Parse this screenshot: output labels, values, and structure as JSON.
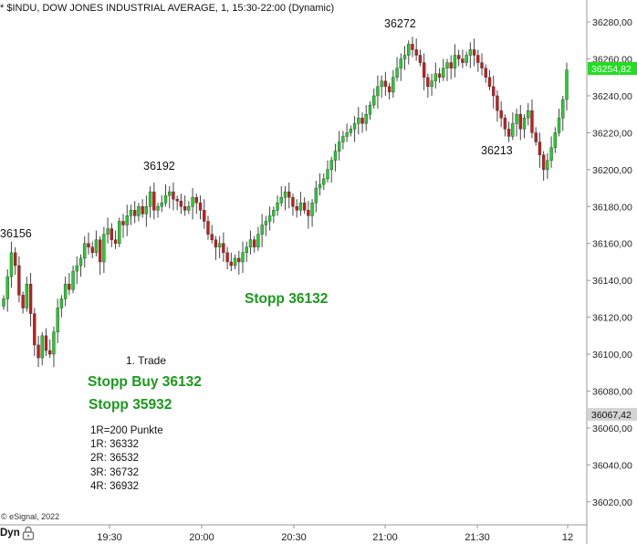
{
  "header": {
    "title": "* $INDU, DOW JONES INDUSTRIAL AVERAGE, 1, 15:30-22:00 (Dynamic)"
  },
  "annotations": {
    "high1": "36156",
    "high2": "36192",
    "high3": "36272",
    "low1": "36213",
    "stopp_mid": "Stopp 36132",
    "trade_label": "1. Trade",
    "stopp_buy": "Stopp Buy 36132",
    "stopp_low": "Stopp 35932",
    "r_list": [
      "1R=200 Punkte",
      "1R: 36332",
      "2R: 36532",
      "3R: 36732",
      "4R: 36932"
    ]
  },
  "footer": {
    "copyright": "© eSignal, 2022",
    "dyn_label": "Dyn"
  },
  "colors": {
    "up": "#1fd12a",
    "down": "#cc1a1a",
    "price_badge": "#22dd22",
    "level_badge": "#d4d4d4",
    "annotation_green": "#1a9a1a"
  },
  "chart_data": {
    "type": "candlestick",
    "symbol": "$INDU",
    "ylim": [
      36010,
      36285
    ],
    "y_ticks": [
      36020,
      36040,
      36060,
      36080,
      36100,
      36120,
      36140,
      36160,
      36180,
      36200,
      36220,
      36240,
      36260,
      36280
    ],
    "x_ticks": [
      "19:30",
      "20:00",
      "20:30",
      "21:00",
      "21:30",
      "12"
    ],
    "last_price": 36254.82,
    "marked_level": 36067.42,
    "closes": [
      36130,
      36142,
      36155,
      36148,
      36132,
      36125,
      36138,
      36122,
      36105,
      36098,
      36110,
      36102,
      36100,
      36112,
      36125,
      36130,
      36138,
      36135,
      36145,
      36148,
      36152,
      36160,
      36158,
      36155,
      36162,
      36150,
      36165,
      36168,
      36162,
      36160,
      36172,
      36170,
      36175,
      36178,
      36175,
      36180,
      36176,
      36180,
      36188,
      36178,
      36180,
      36182,
      36186,
      36188,
      36184,
      36183,
      36180,
      36178,
      36180,
      36185,
      36182,
      36178,
      36172,
      36165,
      36162,
      36158,
      36160,
      36155,
      36150,
      36148,
      36152,
      36150,
      36155,
      36158,
      36162,
      36158,
      36165,
      36170,
      36172,
      36175,
      36178,
      36182,
      36185,
      36188,
      36185,
      36180,
      36178,
      36182,
      36178,
      36175,
      36182,
      36190,
      36192,
      36195,
      36200,
      36205,
      36210,
      36215,
      36218,
      36220,
      36222,
      36225,
      36228,
      36225,
      36230,
      36235,
      36240,
      36245,
      36248,
      36245,
      36242,
      36250,
      36255,
      36260,
      36262,
      36268,
      36265,
      36262,
      36258,
      36250,
      36245,
      36248,
      36252,
      36250,
      36255,
      36258,
      36255,
      36262,
      36260,
      36258,
      36262,
      36265,
      36262,
      36258,
      36255,
      36250,
      36245,
      36240,
      36232,
      36228,
      36222,
      36218,
      36225,
      36230,
      36222,
      36228,
      36232,
      36220,
      36215,
      36208,
      36200,
      36205,
      36212,
      36220,
      36228,
      36238,
      36254
    ],
    "annotations": [
      "36156",
      "36192",
      "36272",
      "36213",
      "Stopp 36132",
      "1. Trade",
      "Stopp Buy 36132",
      "Stopp 35932"
    ]
  }
}
